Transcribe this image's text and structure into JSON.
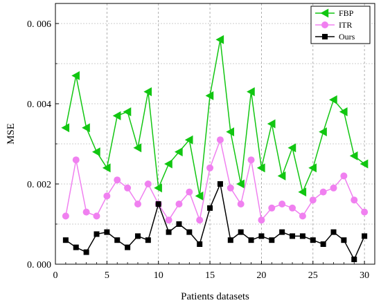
{
  "chart_data": {
    "type": "line",
    "xlabel": "Patients datasets",
    "ylabel": "MSE",
    "xlim": [
      0,
      31
    ],
    "ylim": [
      0,
      0.0065
    ],
    "xticks": [
      0,
      5,
      10,
      15,
      20,
      25,
      30
    ],
    "xtick_labels": [
      "0",
      "5",
      "10",
      "15",
      "20",
      "25",
      "30"
    ],
    "yticks": [
      0,
      0.002,
      0.004,
      0.006
    ],
    "ytick_labels": [
      "0. 000",
      "0. 002",
      "0. 004",
      "0. 006"
    ],
    "grid": true,
    "legend_position": "top-right",
    "x": [
      1,
      2,
      3,
      4,
      5,
      6,
      7,
      8,
      9,
      10,
      11,
      12,
      13,
      14,
      15,
      16,
      17,
      18,
      19,
      20,
      21,
      22,
      23,
      24,
      25,
      26,
      27,
      28,
      29,
      30
    ],
    "series": [
      {
        "name": "FBP",
        "color": "#11c611",
        "marker": "triangle-left",
        "values": [
          0.0034,
          0.0047,
          0.0034,
          0.0028,
          0.0024,
          0.0037,
          0.0038,
          0.0029,
          0.0043,
          0.0019,
          0.0025,
          0.0028,
          0.0031,
          0.0017,
          0.0042,
          0.0056,
          0.0033,
          0.002,
          0.0043,
          0.0024,
          0.0035,
          0.0022,
          0.0029,
          0.0018,
          0.0024,
          0.0033,
          0.0041,
          0.0038,
          0.0027,
          0.0025
        ]
      },
      {
        "name": "ITR",
        "color": "#f080f0",
        "marker": "circle",
        "values": [
          0.0012,
          0.0026,
          0.0013,
          0.0012,
          0.0017,
          0.0021,
          0.0019,
          0.0015,
          0.002,
          0.0015,
          0.0011,
          0.0015,
          0.0018,
          0.0011,
          0.0024,
          0.0031,
          0.0019,
          0.0015,
          0.0026,
          0.0011,
          0.0014,
          0.0015,
          0.0014,
          0.0012,
          0.0016,
          0.0018,
          0.0019,
          0.0022,
          0.0016,
          0.0013
        ]
      },
      {
        "name": "Ours",
        "color": "#000000",
        "marker": "square",
        "values": [
          0.0006,
          0.00042,
          0.0003,
          0.00075,
          0.0008,
          0.0006,
          0.00042,
          0.0007,
          0.0006,
          0.0015,
          0.0008,
          0.001,
          0.0008,
          0.0005,
          0.0014,
          0.002,
          0.0006,
          0.0008,
          0.0006,
          0.0007,
          0.0006,
          0.0008,
          0.0007,
          0.0007,
          0.0006,
          0.0005,
          0.0008,
          0.0006,
          0.00012,
          0.0007
        ]
      }
    ]
  }
}
